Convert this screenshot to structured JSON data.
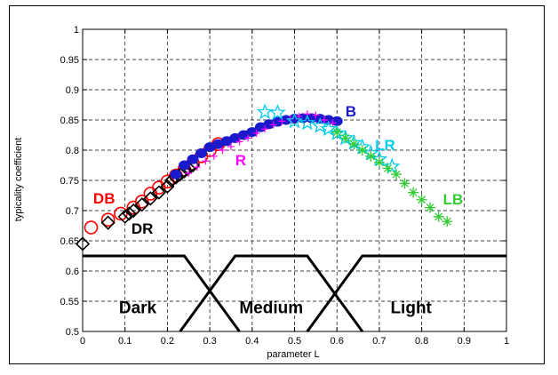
{
  "chart_data": {
    "type": "scatter",
    "xlabel": "parameter L",
    "ylabel": "typicality coefficient",
    "xlim": [
      0,
      1
    ],
    "ylim": [
      0.5,
      1
    ],
    "xticks": [
      "0",
      "0.1",
      "0.2",
      "0.3",
      "0.4",
      "0.5",
      "0.6",
      "0.7",
      "0.8",
      "0.9",
      "1"
    ],
    "yticks": [
      "0.5",
      "0.55",
      "0.6",
      "0.65",
      "0.7",
      "0.75",
      "0.8",
      "0.85",
      "0.9",
      "0.95",
      "1"
    ],
    "grid": true,
    "membership_functions": {
      "color": "#000000",
      "scale_min": 0.5,
      "scale_max": 0.625,
      "sets": [
        {
          "name": "Dark",
          "points": [
            [
              0,
              1
            ],
            [
              0.24,
              1
            ],
            [
              0.37,
              0
            ]
          ]
        },
        {
          "name": "Medium",
          "points": [
            [
              0.23,
              0
            ],
            [
              0.36,
              1
            ],
            [
              0.53,
              1
            ],
            [
              0.66,
              0
            ]
          ]
        },
        {
          "name": "Light",
          "points": [
            [
              0.53,
              0
            ],
            [
              0.66,
              1
            ],
            [
              1,
              1
            ]
          ]
        }
      ]
    },
    "series": [
      {
        "name": "DB",
        "marker": "circle",
        "color": "#ff0000",
        "label_at": [
          0.025,
          0.712
        ],
        "x": [
          0.02,
          0.06,
          0.09,
          0.12,
          0.14,
          0.16,
          0.18,
          0.2,
          0.22,
          0.24,
          0.26,
          0.28,
          0.3,
          0.32
        ],
        "y": [
          0.672,
          0.685,
          0.695,
          0.705,
          0.715,
          0.728,
          0.738,
          0.748,
          0.758,
          0.768,
          0.778,
          0.79,
          0.8,
          0.81
        ]
      },
      {
        "name": "DR",
        "marker": "diamond",
        "color": "#000000",
        "label_at": [
          0.115,
          0.662
        ],
        "x": [
          0.0,
          0.06,
          0.1,
          0.11,
          0.12,
          0.14,
          0.16,
          0.18,
          0.2,
          0.21,
          0.22,
          0.23,
          0.24,
          0.25,
          0.26
        ],
        "y": [
          0.645,
          0.68,
          0.69,
          0.695,
          0.7,
          0.71,
          0.72,
          0.73,
          0.74,
          0.75,
          0.755,
          0.76,
          0.765,
          0.77,
          0.775
        ]
      },
      {
        "name": "B",
        "marker": "filled-circle",
        "color": "#1a1acc",
        "label_at": [
          0.62,
          0.856
        ],
        "x": [
          0.22,
          0.24,
          0.26,
          0.28,
          0.3,
          0.32,
          0.34,
          0.36,
          0.38,
          0.4,
          0.42,
          0.44,
          0.46,
          0.48,
          0.5,
          0.52,
          0.54,
          0.56,
          0.58,
          0.6
        ],
        "y": [
          0.76,
          0.775,
          0.785,
          0.795,
          0.805,
          0.81,
          0.815,
          0.82,
          0.825,
          0.83,
          0.838,
          0.843,
          0.847,
          0.85,
          0.852,
          0.853,
          0.853,
          0.852,
          0.85,
          0.848
        ]
      },
      {
        "name": "R",
        "marker": "plus",
        "color": "#ff00ff",
        "label_at": [
          0.36,
          0.775
        ],
        "x": [
          0.25,
          0.27,
          0.29,
          0.31,
          0.33,
          0.35,
          0.37,
          0.39,
          0.41,
          0.43,
          0.45,
          0.47,
          0.49,
          0.51,
          0.53,
          0.55,
          0.57,
          0.59
        ],
        "y": [
          0.762,
          0.772,
          0.782,
          0.79,
          0.8,
          0.806,
          0.814,
          0.82,
          0.828,
          0.835,
          0.842,
          0.848,
          0.852,
          0.856,
          0.86,
          0.858,
          0.85,
          0.845
        ]
      },
      {
        "name": "LR",
        "marker": "star",
        "color": "#00ccee",
        "label_at": [
          0.69,
          0.8
        ],
        "x": [
          0.43,
          0.46,
          0.5,
          0.53,
          0.56,
          0.58,
          0.6,
          0.62,
          0.64,
          0.66,
          0.68,
          0.7,
          0.73
        ],
        "y": [
          0.863,
          0.862,
          0.848,
          0.845,
          0.84,
          0.835,
          0.828,
          0.82,
          0.812,
          0.805,
          0.795,
          0.785,
          0.773
        ]
      },
      {
        "name": "LB",
        "marker": "asterisk",
        "color": "#33cc33",
        "label_at": [
          0.85,
          0.71
        ],
        "x": [
          0.6,
          0.62,
          0.64,
          0.66,
          0.68,
          0.7,
          0.72,
          0.74,
          0.76,
          0.78,
          0.8,
          0.82,
          0.84,
          0.86
        ],
        "y": [
          0.83,
          0.82,
          0.81,
          0.8,
          0.79,
          0.78,
          0.77,
          0.76,
          0.745,
          0.73,
          0.718,
          0.705,
          0.69,
          0.682
        ]
      }
    ]
  }
}
